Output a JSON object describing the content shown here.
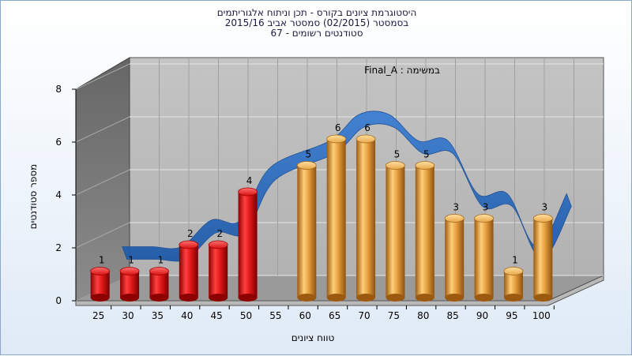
{
  "title_lines": [
    "היסטוגרמת ציונים בקורס - תכן וניתוח אלגוריתמים",
    "בסמסטר  (02/2015)  סמסטר אביב 2015/16",
    "סטודנטים רשומים - 67"
  ],
  "chart_data": {
    "type": "bar",
    "title": "היסטוגרמת ציונים בקורס - תכן וניתוח אלגוריתמים",
    "subtitle": "בסמסטר  (02/2015)  סמסטר אביב 2015/16 / סטודנטים רשומים - 67",
    "annotation": "במשימה : Final_A",
    "xlabel": "טווח ציונים",
    "ylabel": "מספר סטודנטים",
    "ylim": [
      0,
      8
    ],
    "yticks": [
      "0",
      "2",
      "4",
      "6",
      "8"
    ],
    "x_tick_labels": [
      "25",
      "30",
      "35",
      "40",
      "45",
      "50",
      "55",
      "60",
      "65",
      "70",
      "75",
      "80",
      "85",
      "90",
      "95",
      "100"
    ],
    "bar_positions": [
      25,
      30,
      35,
      40,
      45,
      50,
      60,
      65,
      70,
      75,
      80,
      85,
      90,
      95,
      100
    ],
    "values": [
      1,
      1,
      1,
      2,
      2,
      4,
      5,
      6,
      6,
      5,
      5,
      3,
      3,
      1,
      3
    ],
    "fail_threshold": 55,
    "colors": {
      "fail_bar": "#dd1c1c",
      "pass_bar": "#e9a644",
      "trend_ribbon": "#2f6fc0",
      "back_wall": "#bdbdbd",
      "side_wall": "#7d7d7d",
      "floor": "#9a9a9a"
    },
    "grid": true,
    "legend": "none"
  }
}
